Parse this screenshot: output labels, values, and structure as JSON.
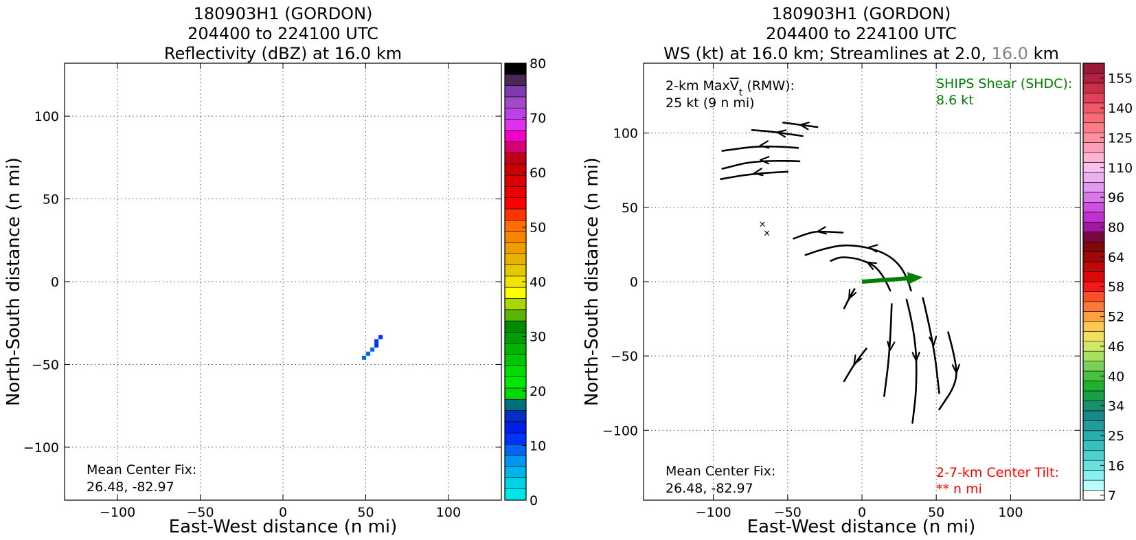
{
  "chart_data": [
    {
      "type": "heatmap",
      "title_lines": [
        "180903H1 (GORDON)",
        "204400 to 224100 UTC",
        "Reflectivity (dBZ) at 16.0 km"
      ],
      "xlabel": "East-West distance (n mi)",
      "ylabel": "North-South distance (n mi)",
      "xlim": [
        -132,
        132
      ],
      "ylim": [
        -132,
        132
      ],
      "xticks": [
        -100,
        -50,
        0,
        50,
        100
      ],
      "yticks": [
        -100,
        -50,
        0,
        50,
        100
      ],
      "xtick_labels": [
        "−100",
        "−50",
        "0",
        "50",
        "100"
      ],
      "ytick_labels": [
        "−100",
        "−50",
        "0",
        "50",
        "100"
      ],
      "grid": true,
      "colorbar": {
        "min": 0,
        "max": 80,
        "tick_values": [
          0,
          10,
          20,
          30,
          40,
          50,
          60,
          70,
          80
        ],
        "tick_labels": [
          "0",
          "10",
          "20",
          "30",
          "40",
          "50",
          "60",
          "70",
          "80"
        ],
        "colors": [
          "#00e5e5",
          "#00d2e6",
          "#00b4ea",
          "#0096ee",
          "#0064f5",
          "#0032fb",
          "#001ee6",
          "#0030c8",
          "#00707f",
          "#00d800",
          "#00e800",
          "#00dc00",
          "#00c800",
          "#00b400",
          "#009e00",
          "#008a00",
          "#5ab400",
          "#a8d800",
          "#ffff00",
          "#f0e400",
          "#e8c800",
          "#e8b200",
          "#f09c00",
          "#f88400",
          "#ff6c00",
          "#ff3200",
          "#ff0000",
          "#ee0000",
          "#dc0000",
          "#cc0000",
          "#c00018",
          "#d80070",
          "#f000c8",
          "#e030f0",
          "#c040e8",
          "#a04cc8",
          "#7e3cb0",
          "#4c2858",
          "#000000"
        ]
      },
      "cells": [
        {
          "x": 49,
          "y": -46,
          "value": 9
        },
        {
          "x": 51.5,
          "y": -43.5,
          "value": 9
        },
        {
          "x": 54,
          "y": -41,
          "value": 10
        },
        {
          "x": 56.5,
          "y": -38.5,
          "value": 11
        },
        {
          "x": 56.5,
          "y": -36,
          "value": 12
        },
        {
          "x": 59,
          "y": -33.5,
          "value": 12
        }
      ],
      "annotation": {
        "line1": "Mean Center Fix:",
        "line2": "26.48, -82.97"
      }
    },
    {
      "type": "line",
      "title_lines": [
        "180903H1 (GORDON)",
        "204400 to 224100 UTC"
      ],
      "title_line3_parts": [
        "WS (kt) at 16.0 km; Streamlines at 2.0, ",
        "16.0",
        " km"
      ],
      "title_line3_colors": [
        "#000000",
        "#808080",
        "#000000"
      ],
      "xlabel": "East-West distance (n mi)",
      "ylabel": "North-South distance (n mi)",
      "xlim": [
        -147,
        147
      ],
      "ylim": [
        -147,
        147
      ],
      "xticks": [
        -100,
        -50,
        0,
        50,
        100
      ],
      "yticks": [
        -100,
        -50,
        0,
        50,
        100
      ],
      "xtick_labels": [
        "−100",
        "−50",
        "0",
        "50",
        "100"
      ],
      "ytick_labels": [
        "−100",
        "−50",
        "0",
        "50",
        "100"
      ],
      "grid": true,
      "colorbar": {
        "tick_labels": [
          "7",
          "16",
          "25",
          "34",
          "40",
          "46",
          "52",
          "58",
          "64",
          "80",
          "96",
          "110",
          "125",
          "140",
          "155"
        ],
        "colors": [
          "#ffffff",
          "#b8fcfc",
          "#88f0f0",
          "#68e0e0",
          "#50d0d0",
          "#38c0c0",
          "#28aeae",
          "#209c9c",
          "#188888",
          "#189070",
          "#18a048",
          "#20b030",
          "#48c040",
          "#78d058",
          "#a8e060",
          "#d0e868",
          "#f0e060",
          "#fcc850",
          "#fca040",
          "#fc7838",
          "#fc5028",
          "#f41818",
          "#dc0808",
          "#c00808",
          "#a00808",
          "#800808",
          "#780840",
          "#a018a0",
          "#c030d0",
          "#cc50e0",
          "#d878e8",
          "#e098f0",
          "#ecb0f0",
          "#f8c0f0",
          "#fcb4d4",
          "#fca0b8",
          "#fc90a0",
          "#fc7c88",
          "#f86c78",
          "#f05868",
          "#e04058",
          "#c83048",
          "#b02040",
          "#981838"
        ]
      },
      "streamlines": [
        [
          [
            -30,
            104
          ],
          [
            -45,
            106
          ],
          [
            -53,
            107
          ]
        ],
        [
          [
            -40,
            98
          ],
          [
            -60,
            101
          ],
          [
            -74,
            102
          ]
        ],
        [
          [
            -43,
            90
          ],
          [
            -65,
            92
          ],
          [
            -94,
            88
          ]
        ],
        [
          [
            -42,
            81
          ],
          [
            -70,
            82
          ],
          [
            -94,
            76
          ]
        ],
        [
          [
            -50,
            74
          ],
          [
            -72,
            73
          ],
          [
            -95,
            69
          ]
        ],
        [
          [
            -13,
            33
          ],
          [
            -28,
            34
          ],
          [
            -35,
            33
          ],
          [
            -46,
            29
          ]
        ],
        [
          [
            33,
            -6
          ],
          [
            30,
            5
          ],
          [
            20,
            17
          ],
          [
            5,
            23
          ],
          [
            -12,
            25
          ],
          [
            -26,
            22
          ],
          [
            -38,
            18
          ]
        ],
        [
          [
            19,
            -6
          ],
          [
            13,
            8
          ],
          [
            0,
            15
          ],
          [
            -14,
            17
          ],
          [
            -21,
            14
          ]
        ],
        [
          [
            -5,
            -5
          ],
          [
            -7,
            -8
          ],
          [
            -12,
            -18
          ]
        ],
        [
          [
            3,
            -45
          ],
          [
            -5,
            -55
          ],
          [
            -12,
            -67
          ]
        ],
        [
          [
            20,
            -15
          ],
          [
            19,
            -45
          ],
          [
            15,
            -77
          ]
        ],
        [
          [
            30,
            -12
          ],
          [
            36,
            -35
          ],
          [
            37,
            -70
          ],
          [
            34,
            -95
          ]
        ],
        [
          [
            41,
            -11
          ],
          [
            48,
            -40
          ],
          [
            52,
            -75
          ]
        ],
        [
          [
            58,
            -34
          ],
          [
            63,
            -52
          ],
          [
            64,
            -68
          ],
          [
            52,
            -86
          ]
        ]
      ],
      "shear_vector": {
        "from": [
          0,
          0
        ],
        "to": [
          41,
          3
        ]
      },
      "center_marks": [
        [
          -67,
          39
        ],
        [
          -64,
          33
        ]
      ],
      "annotation_rmw_line1": "2-km Max",
      "annotation_rmw_V": "V",
      "annotation_rmw_sub": "t",
      "annotation_rmw_tail": " (RMW):",
      "annotation_rmw_line2": "25 kt (9 n mi)",
      "annotation_ships_line1": "SHIPS Shear (SHDC):",
      "annotation_ships_line2": "8.6 kt",
      "annotation_center_line1": "Mean Center Fix:",
      "annotation_center_line2": "26.48, -82.97",
      "annotation_tilt_line1": "2-7-km Center Tilt:",
      "annotation_tilt_line2": "** n mi",
      "ships_color": "#008000",
      "tilt_color": "#ff0000"
    }
  ]
}
